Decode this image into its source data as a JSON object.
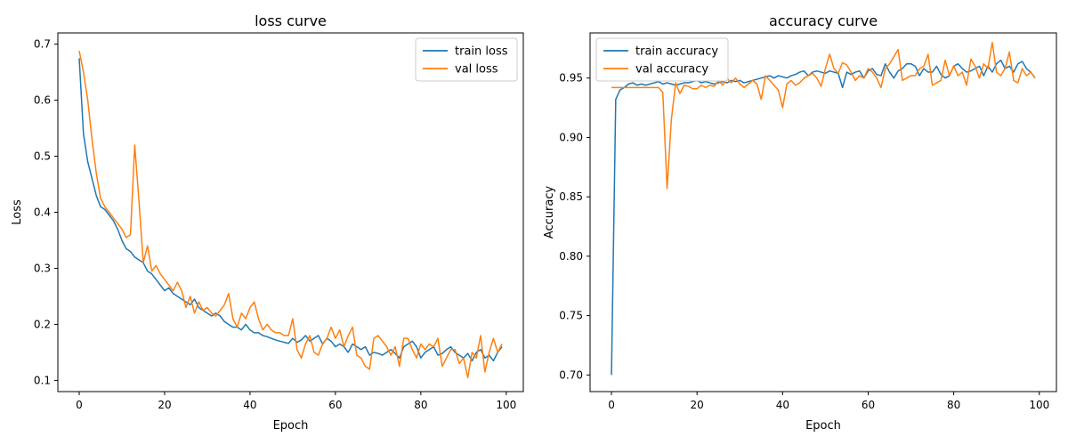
{
  "chart_data": [
    {
      "type": "line",
      "title": "loss curve",
      "xlabel": "Epoch",
      "ylabel": "Loss",
      "xlim": [
        -5,
        104
      ],
      "ylim": [
        0.08,
        0.72
      ],
      "xticks": [
        0,
        20,
        40,
        60,
        80,
        100
      ],
      "xtick_labels": [
        "0",
        "20",
        "40",
        "60",
        "80",
        "100"
      ],
      "yticks": [
        0.1,
        0.2,
        0.3,
        0.4,
        0.5,
        0.6,
        0.7
      ],
      "ytick_labels": [
        "0.1",
        "0.2",
        "0.3",
        "0.4",
        "0.5",
        "0.6",
        "0.7"
      ],
      "grid": false,
      "legend_position": "top-right",
      "x": [
        0,
        1,
        2,
        3,
        4,
        5,
        6,
        7,
        8,
        9,
        10,
        11,
        12,
        13,
        14,
        15,
        16,
        17,
        18,
        19,
        20,
        21,
        22,
        23,
        24,
        25,
        26,
        27,
        28,
        29,
        30,
        31,
        32,
        33,
        34,
        35,
        36,
        37,
        38,
        39,
        40,
        41,
        42,
        43,
        44,
        45,
        46,
        47,
        48,
        49,
        50,
        51,
        52,
        53,
        54,
        55,
        56,
        57,
        58,
        59,
        60,
        61,
        62,
        63,
        64,
        65,
        66,
        67,
        68,
        69,
        70,
        71,
        72,
        73,
        74,
        75,
        76,
        77,
        78,
        79,
        80,
        81,
        82,
        83,
        84,
        85,
        86,
        87,
        88,
        89,
        90,
        91,
        92,
        93,
        94,
        95,
        96,
        97,
        98,
        99
      ],
      "series": [
        {
          "name": "train loss",
          "color": "#1f77b4",
          "values": [
            0.675,
            0.54,
            0.49,
            0.46,
            0.43,
            0.41,
            0.405,
            0.395,
            0.385,
            0.37,
            0.35,
            0.335,
            0.33,
            0.32,
            0.315,
            0.31,
            0.295,
            0.29,
            0.28,
            0.27,
            0.26,
            0.265,
            0.255,
            0.25,
            0.245,
            0.24,
            0.235,
            0.245,
            0.23,
            0.225,
            0.22,
            0.215,
            0.22,
            0.215,
            0.205,
            0.2,
            0.195,
            0.195,
            0.19,
            0.2,
            0.19,
            0.185,
            0.185,
            0.18,
            0.178,
            0.175,
            0.172,
            0.17,
            0.168,
            0.166,
            0.175,
            0.168,
            0.172,
            0.18,
            0.17,
            0.175,
            0.18,
            0.165,
            0.175,
            0.17,
            0.16,
            0.165,
            0.16,
            0.15,
            0.165,
            0.16,
            0.155,
            0.16,
            0.145,
            0.15,
            0.148,
            0.145,
            0.15,
            0.155,
            0.148,
            0.14,
            0.16,
            0.165,
            0.17,
            0.16,
            0.14,
            0.15,
            0.155,
            0.16,
            0.145,
            0.148,
            0.155,
            0.16,
            0.15,
            0.145,
            0.14,
            0.148,
            0.135,
            0.15,
            0.155,
            0.14,
            0.145,
            0.135,
            0.15,
            0.16
          ]
        },
        {
          "name": "val loss",
          "color": "#ff7f0e",
          "values": [
            0.688,
            0.65,
            0.6,
            0.53,
            0.47,
            0.425,
            0.41,
            0.4,
            0.39,
            0.38,
            0.37,
            0.355,
            0.36,
            0.52,
            0.42,
            0.31,
            0.34,
            0.295,
            0.305,
            0.29,
            0.28,
            0.27,
            0.26,
            0.275,
            0.26,
            0.23,
            0.25,
            0.22,
            0.24,
            0.225,
            0.23,
            0.22,
            0.215,
            0.225,
            0.235,
            0.255,
            0.21,
            0.195,
            0.22,
            0.21,
            0.23,
            0.24,
            0.21,
            0.19,
            0.2,
            0.19,
            0.185,
            0.185,
            0.18,
            0.18,
            0.21,
            0.155,
            0.14,
            0.165,
            0.18,
            0.15,
            0.145,
            0.165,
            0.175,
            0.195,
            0.175,
            0.19,
            0.16,
            0.18,
            0.195,
            0.145,
            0.14,
            0.125,
            0.12,
            0.175,
            0.18,
            0.17,
            0.16,
            0.145,
            0.16,
            0.125,
            0.175,
            0.175,
            0.155,
            0.14,
            0.165,
            0.155,
            0.165,
            0.16,
            0.175,
            0.125,
            0.14,
            0.155,
            0.155,
            0.13,
            0.14,
            0.105,
            0.15,
            0.14,
            0.18,
            0.115,
            0.15,
            0.175,
            0.15,
            0.165
          ]
        }
      ]
    },
    {
      "type": "line",
      "title": "accuracy curve",
      "xlabel": "Epoch",
      "ylabel": "Accuracy",
      "xlim": [
        -5,
        104
      ],
      "ylim": [
        0.686,
        0.988
      ],
      "xticks": [
        0,
        20,
        40,
        60,
        80,
        100
      ],
      "xtick_labels": [
        "0",
        "20",
        "40",
        "60",
        "80",
        "100"
      ],
      "yticks": [
        0.7,
        0.75,
        0.8,
        0.85,
        0.9,
        0.95
      ],
      "ytick_labels": [
        "0.70",
        "0.75",
        "0.80",
        "0.85",
        "0.90",
        "0.95"
      ],
      "grid": false,
      "legend_position": "top-left",
      "x": [
        0,
        1,
        2,
        3,
        4,
        5,
        6,
        7,
        8,
        9,
        10,
        11,
        12,
        13,
        14,
        15,
        16,
        17,
        18,
        19,
        20,
        21,
        22,
        23,
        24,
        25,
        26,
        27,
        28,
        29,
        30,
        31,
        32,
        33,
        34,
        35,
        36,
        37,
        38,
        39,
        40,
        41,
        42,
        43,
        44,
        45,
        46,
        47,
        48,
        49,
        50,
        51,
        52,
        53,
        54,
        55,
        56,
        57,
        58,
        59,
        60,
        61,
        62,
        63,
        64,
        65,
        66,
        67,
        68,
        69,
        70,
        71,
        72,
        73,
        74,
        75,
        76,
        77,
        78,
        79,
        80,
        81,
        82,
        83,
        84,
        85,
        86,
        87,
        88,
        89,
        90,
        91,
        92,
        93,
        94,
        95,
        96,
        97,
        98,
        99
      ],
      "series": [
        {
          "name": "train accuracy",
          "color": "#1f77b4",
          "values": [
            0.7,
            0.932,
            0.94,
            0.942,
            0.945,
            0.946,
            0.944,
            0.945,
            0.944,
            0.945,
            0.946,
            0.947,
            0.945,
            0.946,
            0.945,
            0.944,
            0.945,
            0.946,
            0.946,
            0.947,
            0.948,
            0.946,
            0.947,
            0.946,
            0.945,
            0.946,
            0.947,
            0.946,
            0.948,
            0.947,
            0.948,
            0.946,
            0.947,
            0.948,
            0.949,
            0.95,
            0.951,
            0.952,
            0.95,
            0.952,
            0.951,
            0.95,
            0.952,
            0.953,
            0.955,
            0.956,
            0.952,
            0.955,
            0.956,
            0.955,
            0.954,
            0.956,
            0.955,
            0.954,
            0.942,
            0.955,
            0.953,
            0.955,
            0.956,
            0.95,
            0.956,
            0.958,
            0.953,
            0.952,
            0.962,
            0.955,
            0.95,
            0.956,
            0.958,
            0.962,
            0.962,
            0.96,
            0.952,
            0.958,
            0.955,
            0.955,
            0.96,
            0.953,
            0.95,
            0.952,
            0.96,
            0.962,
            0.958,
            0.955,
            0.956,
            0.958,
            0.96,
            0.952,
            0.96,
            0.955,
            0.962,
            0.965,
            0.958,
            0.96,
            0.955,
            0.962,
            0.964,
            0.958,
            0.955,
            0.95
          ]
        },
        {
          "name": "val accuracy",
          "color": "#ff7f0e",
          "values": [
            0.942,
            0.942,
            0.942,
            0.942,
            0.942,
            0.942,
            0.942,
            0.942,
            0.942,
            0.942,
            0.942,
            0.942,
            0.938,
            0.857,
            0.915,
            0.946,
            0.937,
            0.944,
            0.943,
            0.941,
            0.941,
            0.944,
            0.942,
            0.944,
            0.943,
            0.948,
            0.944,
            0.95,
            0.946,
            0.95,
            0.945,
            0.942,
            0.945,
            0.948,
            0.945,
            0.932,
            0.952,
            0.948,
            0.944,
            0.94,
            0.925,
            0.945,
            0.948,
            0.944,
            0.946,
            0.95,
            0.952,
            0.954,
            0.95,
            0.943,
            0.958,
            0.97,
            0.958,
            0.954,
            0.963,
            0.961,
            0.955,
            0.948,
            0.952,
            0.95,
            0.958,
            0.955,
            0.95,
            0.942,
            0.958,
            0.962,
            0.968,
            0.974,
            0.948,
            0.95,
            0.952,
            0.952,
            0.958,
            0.96,
            0.97,
            0.944,
            0.946,
            0.948,
            0.965,
            0.952,
            0.96,
            0.952,
            0.955,
            0.944,
            0.966,
            0.96,
            0.95,
            0.962,
            0.958,
            0.98,
            0.955,
            0.952,
            0.958,
            0.972,
            0.948,
            0.946,
            0.958,
            0.952,
            0.955,
            0.95
          ]
        }
      ]
    }
  ]
}
